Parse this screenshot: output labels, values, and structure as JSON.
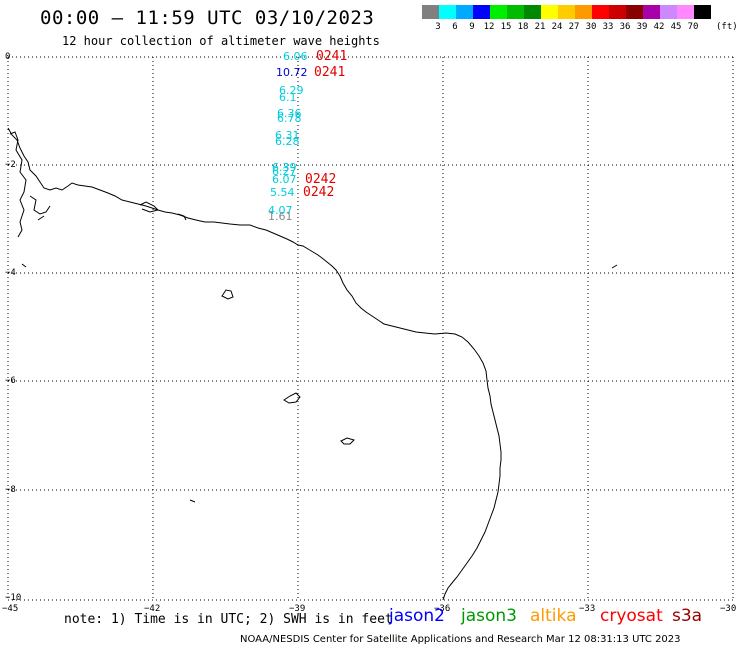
{
  "header": {
    "title": "00:00 – 11:59 UTC 03/10/2023",
    "subtitle": "12 hour collection of altimeter wave heights"
  },
  "legend": {
    "colors": [
      "#808080",
      "#00ffff",
      "#00aaff",
      "#0000ff",
      "#00ee00",
      "#00bb00",
      "#008800",
      "#ffff00",
      "#ffcc00",
      "#ff9900",
      "#ff0000",
      "#cc0000",
      "#880000",
      "#aa00aa",
      "#cc88ff",
      "#ff88ff",
      "#000000"
    ],
    "labels": [
      "3",
      "6",
      "9",
      "12",
      "15",
      "18",
      "21",
      "24",
      "27",
      "30",
      "33",
      "36",
      "39",
      "42",
      "45",
      "70"
    ],
    "unit": "(ft)"
  },
  "axes": {
    "y_ticks": [
      "0",
      "−2",
      "−4",
      "−6",
      "−8",
      "−10"
    ],
    "x_ticks": [
      "−45",
      "−42",
      "−39",
      "−36",
      "−33",
      "−30"
    ]
  },
  "observations": [
    {
      "text": "6.06",
      "color": "#00ccdd"
    },
    {
      "text": "10.72",
      "color": "#0000cc"
    },
    {
      "text": "6.29",
      "color": "#00ccdd"
    },
    {
      "text": "6.1",
      "color": "#00ccdd"
    },
    {
      "text": "6.36",
      "color": "#00ccdd"
    },
    {
      "text": "6.78",
      "color": "#00ccdd"
    },
    {
      "text": "6.31",
      "color": "#00ccdd"
    },
    {
      "text": "6.28",
      "color": "#00ccdd"
    },
    {
      "text": "6.39",
      "color": "#00ccdd"
    },
    {
      "text": "6.27",
      "color": "#00ccdd"
    },
    {
      "text": "6.07",
      "color": "#00ccdd"
    },
    {
      "text": "5.54",
      "color": "#00ccdd"
    },
    {
      "text": "4.07",
      "color": "#00ccdd"
    },
    {
      "text": "1.61",
      "color": "#888888"
    }
  ],
  "pass_labels": [
    {
      "text": "0241"
    },
    {
      "text": "0241"
    },
    {
      "text": "0242"
    },
    {
      "text": "0242"
    }
  ],
  "note": "note: 1) Time is in UTC; 2) SWH is in feet",
  "satellites": [
    {
      "name": "jason2",
      "color": "#0000ff"
    },
    {
      "name": "jason3",
      "color": "#009900"
    },
    {
      "name": "altika",
      "color": "#ff9900"
    },
    {
      "name": "cryosat",
      "color": "#ff0000"
    },
    {
      "name": "s3a",
      "color": "#990000"
    }
  ],
  "footer": "NOAA/NESDIS Center for Satellite Applications and Research   Mar 12 08:31:13 UTC 2023"
}
